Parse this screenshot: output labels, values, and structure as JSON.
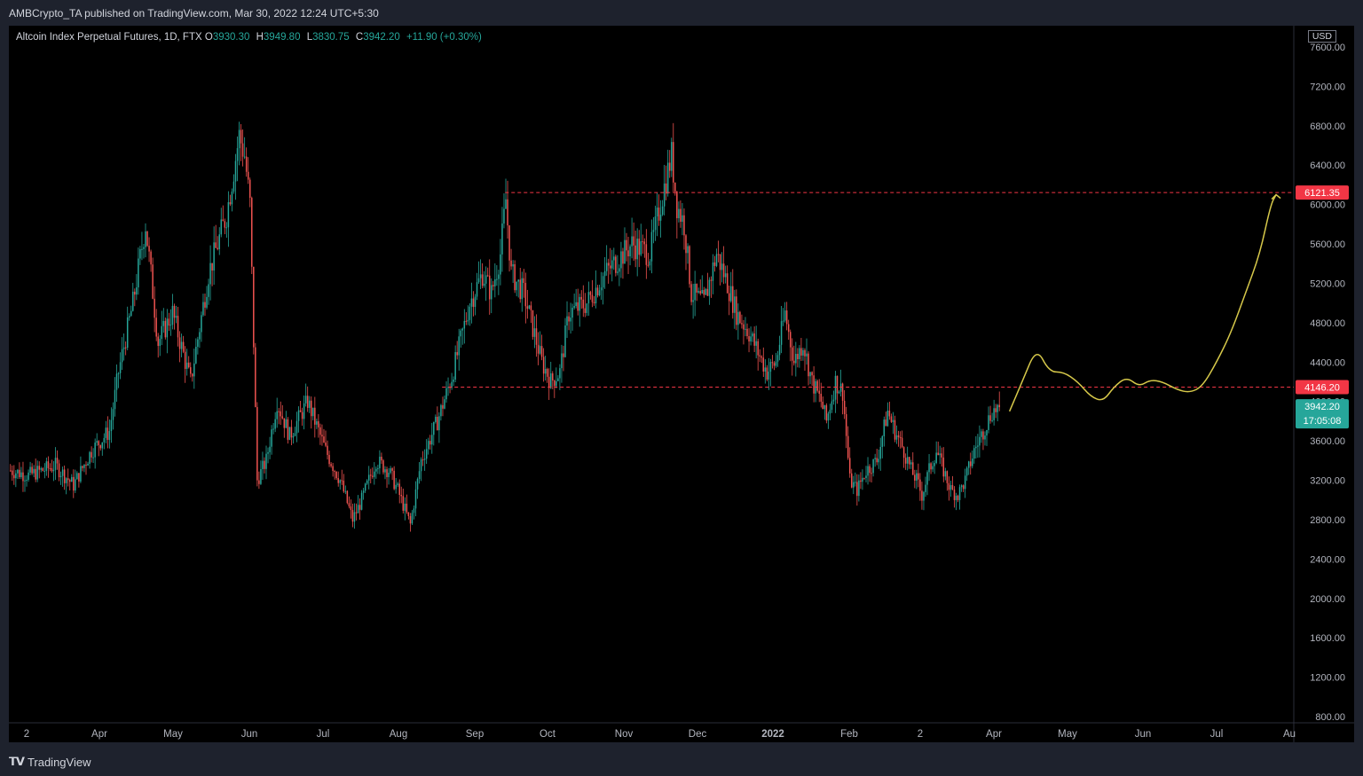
{
  "header": {
    "publisher_line": "AMBCrypto_TA published on TradingView.com, Mar 30, 2022 12:24 UTC+5:30"
  },
  "legend": {
    "symbol": "Altcoin Index Perpetual Futures, 1D, FTX",
    "open_label": "O",
    "open": "3930.30",
    "high_label": "H",
    "high": "3949.80",
    "low_label": "L",
    "low": "3830.75",
    "close_label": "C",
    "close": "3942.20",
    "change": "+11.90 (+0.30%)"
  },
  "currency": "USD",
  "footer": {
    "brand": "TradingView"
  },
  "colors": {
    "up": "#26a69a",
    "down": "#ef5350",
    "level": "#f23645",
    "projection": "#d6c84a",
    "price_tag": "#26a69a",
    "level_tag": "#f23645"
  },
  "chart_data": {
    "type": "candlestick",
    "symbol": "Altcoin Index Perpetual Futures",
    "interval": "1D",
    "exchange": "FTX",
    "ylim": [
      800,
      7600
    ],
    "y_ticks": [
      "7600.00",
      "7200.00",
      "6800.00",
      "6400.00",
      "6000.00",
      "5600.00",
      "5200.00",
      "4800.00",
      "4400.00",
      "4000.00",
      "3600.00",
      "3200.00",
      "2800.00",
      "2400.00",
      "2000.00",
      "1600.00",
      "1200.00",
      "800.00"
    ],
    "x_ticks": [
      "2",
      "Apr",
      "May",
      "Jun",
      "Jul",
      "Aug",
      "Sep",
      "Oct",
      "Nov",
      "Dec",
      "2022",
      "Feb",
      "2",
      "Apr",
      "May",
      "Jun",
      "Jul",
      "Au"
    ],
    "last_price": "3942.20",
    "countdown": "17:05:08",
    "levels": [
      {
        "value": 6121.35,
        "label": "6121.35"
      },
      {
        "value": 4146.2,
        "label": "4146.20"
      }
    ],
    "path_keypoints": [
      [
        0,
        3300
      ],
      [
        10,
        3250
      ],
      [
        25,
        3350
      ],
      [
        35,
        3150
      ],
      [
        45,
        3500
      ],
      [
        55,
        3700
      ],
      [
        60,
        4300
      ],
      [
        68,
        5000
      ],
      [
        75,
        5800
      ],
      [
        82,
        4600
      ],
      [
        90,
        4900
      ],
      [
        100,
        4200
      ],
      [
        110,
        5300
      ],
      [
        120,
        5900
      ],
      [
        127,
        6700
      ],
      [
        130,
        6500
      ],
      [
        133,
        6000
      ],
      [
        137,
        3200
      ],
      [
        142,
        3400
      ],
      [
        148,
        4000
      ],
      [
        155,
        3650
      ],
      [
        165,
        4000
      ],
      [
        175,
        3500
      ],
      [
        183,
        3200
      ],
      [
        190,
        2800
      ],
      [
        195,
        3000
      ],
      [
        203,
        3400
      ],
      [
        210,
        3300
      ],
      [
        215,
        3100
      ],
      [
        222,
        2750
      ],
      [
        228,
        3400
      ],
      [
        237,
        3800
      ],
      [
        245,
        4250
      ],
      [
        255,
        5000
      ],
      [
        262,
        5300
      ],
      [
        267,
        5100
      ],
      [
        272,
        5500
      ],
      [
        275,
        6050
      ],
      [
        278,
        5300
      ],
      [
        285,
        5100
      ],
      [
        295,
        4400
      ],
      [
        300,
        4200
      ],
      [
        305,
        4300
      ],
      [
        310,
        4900
      ],
      [
        320,
        5000
      ],
      [
        330,
        5300
      ],
      [
        345,
        5600
      ],
      [
        355,
        5500
      ],
      [
        362,
        6100
      ],
      [
        367,
        6500
      ],
      [
        370,
        6000
      ],
      [
        374,
        5800
      ],
      [
        378,
        5100
      ],
      [
        385,
        5000
      ],
      [
        392,
        5500
      ],
      [
        398,
        5200
      ],
      [
        403,
        4900
      ],
      [
        410,
        4700
      ],
      [
        420,
        4300
      ],
      [
        425,
        4400
      ],
      [
        430,
        4900
      ],
      [
        435,
        4400
      ],
      [
        440,
        4600
      ],
      [
        445,
        4200
      ],
      [
        450,
        4000
      ],
      [
        453,
        3800
      ],
      [
        458,
        4200
      ],
      [
        462,
        4100
      ],
      [
        466,
        3200
      ],
      [
        470,
        3100
      ],
      [
        475,
        3300
      ],
      [
        481,
        3400
      ],
      [
        487,
        3900
      ],
      [
        491,
        3700
      ],
      [
        496,
        3500
      ],
      [
        500,
        3300
      ],
      [
        503,
        3200
      ],
      [
        506,
        3050
      ],
      [
        510,
        3300
      ],
      [
        514,
        3500
      ],
      [
        518,
        3300
      ],
      [
        522,
        3100
      ],
      [
        526,
        3050
      ],
      [
        530,
        3200
      ],
      [
        535,
        3500
      ],
      [
        540,
        3700
      ],
      [
        545,
        3900
      ],
      [
        549,
        3942
      ]
    ],
    "projection_keypoints": [
      [
        555,
        3900
      ],
      [
        562,
        4200
      ],
      [
        570,
        4550
      ],
      [
        577,
        4300
      ],
      [
        585,
        4300
      ],
      [
        593,
        4200
      ],
      [
        600,
        4050
      ],
      [
        607,
        4000
      ],
      [
        613,
        4150
      ],
      [
        620,
        4250
      ],
      [
        627,
        4150
      ],
      [
        633,
        4220
      ],
      [
        640,
        4200
      ],
      [
        648,
        4120
      ],
      [
        655,
        4090
      ],
      [
        662,
        4150
      ],
      [
        670,
        4400
      ],
      [
        678,
        4700
      ],
      [
        686,
        5100
      ],
      [
        694,
        5500
      ],
      [
        700,
        6000
      ],
      [
        703,
        6100
      ]
    ]
  }
}
